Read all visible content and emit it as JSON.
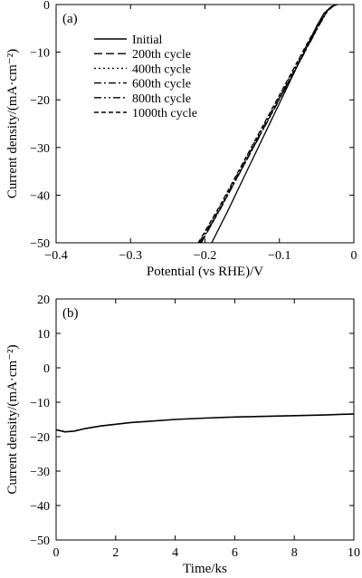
{
  "chart_data": [
    {
      "type": "line",
      "panel_label": "(a)",
      "xlabel": "Potential (vs RHE)/V",
      "ylabel": "Current density/(mA·cm⁻²)",
      "xlim": [
        -0.4,
        0
      ],
      "ylim": [
        -50,
        0
      ],
      "xticks": [
        -0.4,
        -0.3,
        -0.2,
        -0.1,
        0
      ],
      "xtick_labels": [
        "−0.4",
        "−0.3",
        "−0.2",
        "−0.1",
        "0"
      ],
      "yticks": [
        -50,
        -40,
        -30,
        -20,
        -10,
        0
      ],
      "ytick_labels": [
        "−50",
        "−40",
        "−30",
        "−20",
        "−10",
        "0"
      ],
      "grid": false,
      "legend_position": "top-left",
      "series": [
        {
          "name": "Initial",
          "dash": "solid",
          "x": [
            -0.191,
            -0.17,
            -0.15,
            -0.13,
            -0.11,
            -0.09,
            -0.07,
            -0.05,
            -0.04,
            -0.03,
            -0.022
          ],
          "y": [
            -50,
            -43.5,
            -37.0,
            -30.5,
            -24.0,
            -17.5,
            -11.0,
            -4.5,
            -1.8,
            -0.4,
            0
          ]
        },
        {
          "name": "200th cycle",
          "dash": "longdash",
          "x": [
            -0.205,
            -0.18,
            -0.16,
            -0.14,
            -0.12,
            -0.1,
            -0.08,
            -0.06,
            -0.045,
            -0.035,
            -0.025
          ],
          "y": [
            -50,
            -43.0,
            -37.2,
            -31.4,
            -25.6,
            -19.8,
            -14.0,
            -8.2,
            -3.8,
            -1.2,
            0
          ]
        },
        {
          "name": "400th cycle",
          "dash": "dot",
          "x": [
            -0.208,
            -0.18,
            -0.16,
            -0.14,
            -0.12,
            -0.1,
            -0.08,
            -0.06,
            -0.045,
            -0.035,
            -0.025
          ],
          "y": [
            -50,
            -42.4,
            -36.6,
            -30.8,
            -25.0,
            -19.2,
            -13.4,
            -7.6,
            -3.5,
            -1.1,
            0
          ]
        },
        {
          "name": "600th cycle",
          "dash": "dashdot",
          "x": [
            -0.207,
            -0.18,
            -0.16,
            -0.14,
            -0.12,
            -0.1,
            -0.08,
            -0.06,
            -0.045,
            -0.035,
            -0.025
          ],
          "y": [
            -50,
            -42.8,
            -37.0,
            -31.2,
            -25.4,
            -19.6,
            -13.8,
            -8.0,
            -3.7,
            -1.2,
            0
          ]
        },
        {
          "name": "800th cycle",
          "dash": "dashdotdot",
          "x": [
            -0.206,
            -0.18,
            -0.16,
            -0.14,
            -0.12,
            -0.1,
            -0.08,
            -0.06,
            -0.045,
            -0.035,
            -0.025
          ],
          "y": [
            -50,
            -43.1,
            -37.3,
            -31.5,
            -25.7,
            -19.9,
            -14.1,
            -8.3,
            -3.9,
            -1.3,
            0
          ]
        },
        {
          "name": "1000th cycle",
          "dash": "shortdash",
          "x": [
            -0.209,
            -0.18,
            -0.16,
            -0.14,
            -0.12,
            -0.1,
            -0.08,
            -0.06,
            -0.045,
            -0.035,
            -0.025
          ],
          "y": [
            -50,
            -42.2,
            -36.4,
            -30.6,
            -24.8,
            -19.0,
            -13.2,
            -7.4,
            -3.4,
            -1.0,
            0
          ]
        }
      ]
    },
    {
      "type": "line",
      "panel_label": "(b)",
      "xlabel": "Time/ks",
      "ylabel": "Current density/(mA·cm⁻²)",
      "xlim": [
        0,
        10
      ],
      "ylim": [
        -50,
        20
      ],
      "xticks": [
        0,
        2,
        4,
        6,
        8,
        10
      ],
      "xtick_labels": [
        "0",
        "2",
        "4",
        "6",
        "8",
        "10"
      ],
      "yticks": [
        -50,
        -40,
        -30,
        -20,
        -10,
        0,
        10,
        20
      ],
      "ytick_labels": [
        "−50",
        "−40",
        "−30",
        "−20",
        "−10",
        "0",
        "10",
        "20"
      ],
      "grid": false,
      "series": [
        {
          "dash": "solid",
          "x": [
            0,
            0.3,
            0.6,
            1,
            1.5,
            2,
            2.5,
            3,
            4,
            5,
            6,
            7,
            8,
            9,
            10
          ],
          "y": [
            -18.0,
            -18.6,
            -18.4,
            -17.6,
            -16.9,
            -16.4,
            -15.9,
            -15.6,
            -15.0,
            -14.6,
            -14.3,
            -14.1,
            -13.9,
            -13.7,
            -13.4
          ]
        }
      ]
    }
  ]
}
